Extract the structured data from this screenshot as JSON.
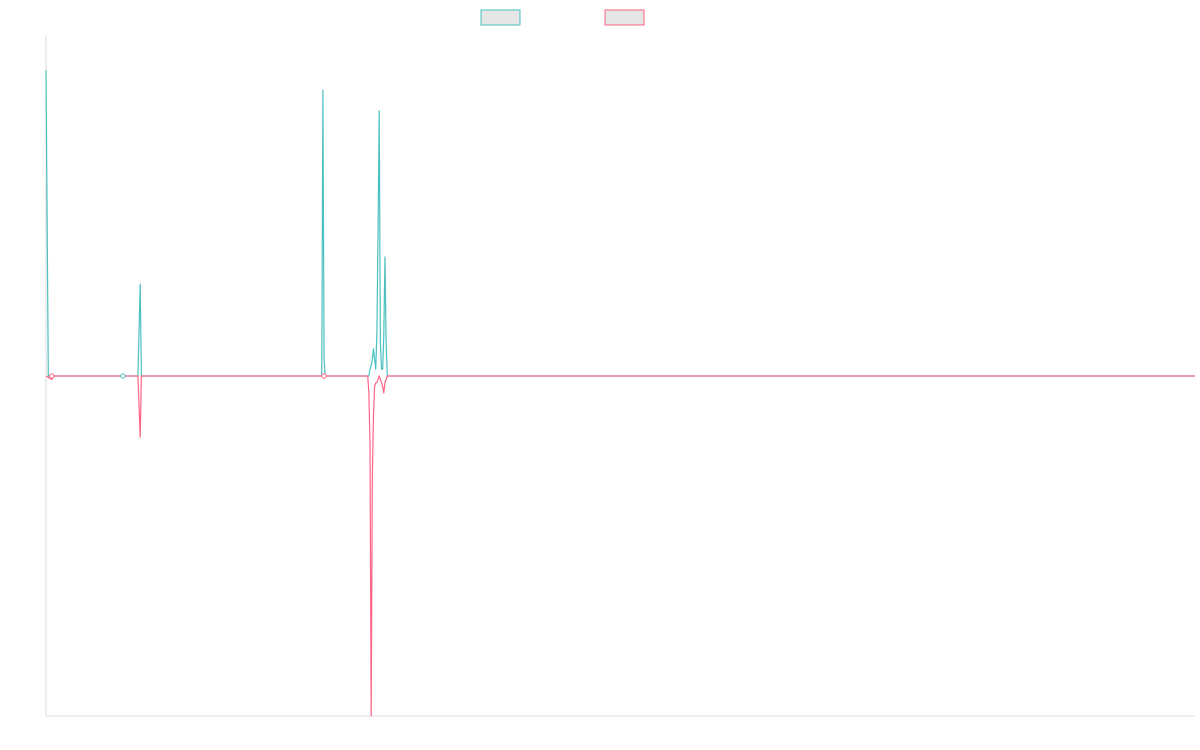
{
  "chart_data": {
    "type": "line",
    "title": "",
    "xlabel": "",
    "ylabel": "",
    "grid": false,
    "legend": {
      "position": "top-center",
      "show_labels": false
    },
    "xlim": [
      0,
      1000
    ],
    "ylim": [
      -1,
      1
    ],
    "colors": {
      "series_1": "#4bc0c0",
      "series_2": "#ff6384",
      "axis": "#dddddd"
    },
    "series": [
      {
        "values": [
          [
            0,
            0.9
          ],
          [
            2,
            0
          ],
          [
            5,
            0
          ],
          [
            65,
            0
          ],
          [
            80,
            0
          ],
          [
            82,
            0.27
          ],
          [
            83,
            0
          ],
          [
            240,
            0
          ],
          [
            241,
            0.84
          ],
          [
            242,
            0.05
          ],
          [
            243,
            0
          ],
          [
            280,
            0
          ],
          [
            281,
            0
          ],
          [
            282,
            0.02
          ],
          [
            283,
            0.03
          ],
          [
            284,
            0.05
          ],
          [
            285,
            0.08
          ],
          [
            286,
            0.05
          ],
          [
            287,
            0.02
          ],
          [
            288,
            0.13
          ],
          [
            289,
            0.43
          ],
          [
            290,
            0.78
          ],
          [
            291,
            0.1
          ],
          [
            292,
            0.02
          ],
          [
            293,
            0.02
          ],
          [
            294,
            0.12
          ],
          [
            295,
            0.35
          ],
          [
            296,
            0.1
          ],
          [
            297,
            0
          ],
          [
            1000,
            0
          ]
        ]
      },
      {
        "values": [
          [
            0,
            0
          ],
          [
            5,
            -0.01
          ],
          [
            7,
            0
          ],
          [
            65,
            0
          ],
          [
            80,
            0
          ],
          [
            82,
            -0.18
          ],
          [
            83,
            0
          ],
          [
            240,
            0
          ],
          [
            243,
            0
          ],
          [
            280,
            0
          ],
          [
            281,
            -0.05
          ],
          [
            282,
            -0.2
          ],
          [
            283,
            -1.0
          ],
          [
            284,
            -0.3
          ],
          [
            285,
            -0.12
          ],
          [
            286,
            -0.03
          ],
          [
            287,
            -0.02
          ],
          [
            288,
            -0.02
          ],
          [
            289,
            -0.01
          ],
          [
            290,
            0
          ],
          [
            291,
            -0.01
          ],
          [
            292,
            -0.02
          ],
          [
            293,
            -0.03
          ],
          [
            294,
            -0.05
          ],
          [
            295,
            -0.02
          ],
          [
            296,
            -0.01
          ],
          [
            297,
            0
          ],
          [
            1000,
            0
          ]
        ]
      }
    ],
    "markers": [
      {
        "x": 5,
        "y": 0,
        "series": 1
      },
      {
        "x": 67,
        "y": 0,
        "series": 0
      },
      {
        "x": 242,
        "y": 0,
        "series": 1
      }
    ]
  }
}
